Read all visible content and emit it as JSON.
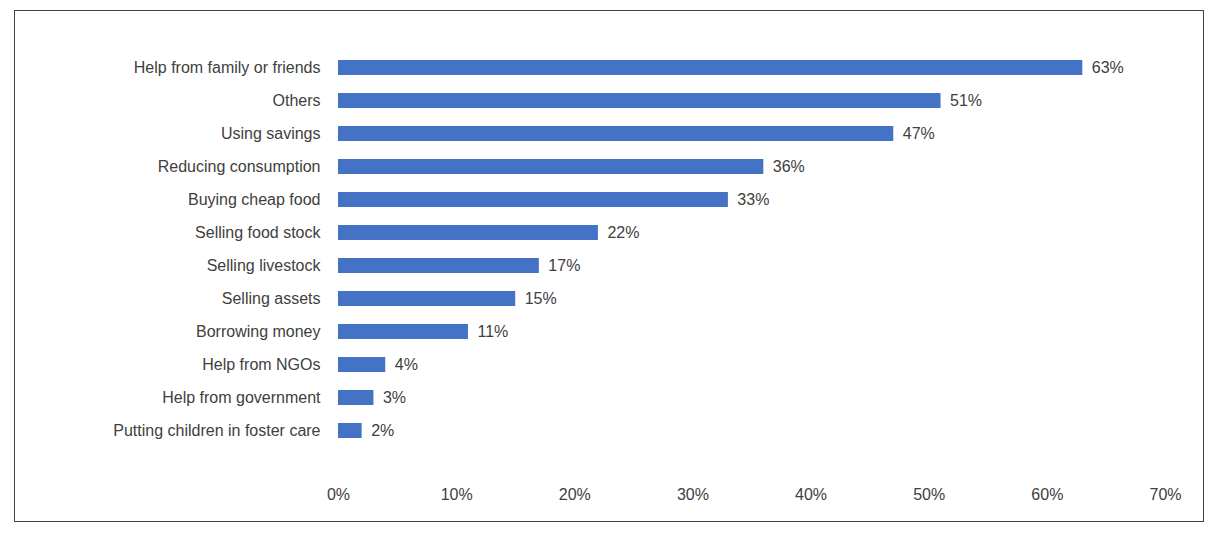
{
  "chart_data": {
    "type": "bar",
    "orientation": "horizontal",
    "categories": [
      "Help from family or friends",
      "Others",
      "Using savings",
      "Reducing consumption",
      "Buying cheap food",
      "Selling food stock",
      "Selling livestock",
      "Selling assets",
      "Borrowing money",
      "Help from NGOs",
      "Help from government",
      "Putting children in foster care"
    ],
    "values": [
      63,
      51,
      47,
      36,
      33,
      22,
      17,
      15,
      11,
      4,
      3,
      2
    ],
    "value_labels": [
      "63%",
      "51%",
      "47%",
      "36%",
      "33%",
      "22%",
      "17%",
      "15%",
      "11%",
      "4%",
      "3%",
      "2%"
    ],
    "data_labels": true,
    "color": "#4472c4",
    "xlim": [
      0,
      70
    ],
    "xticks": [
      {
        "value": 0,
        "label": "0%"
      },
      {
        "value": 10,
        "label": "10%"
      },
      {
        "value": 20,
        "label": "20%"
      },
      {
        "value": 30,
        "label": "30%"
      },
      {
        "value": 40,
        "label": "40%"
      },
      {
        "value": 50,
        "label": "50%"
      },
      {
        "value": 60,
        "label": "60%"
      },
      {
        "value": 70,
        "label": "70%"
      }
    ],
    "grid": false
  }
}
